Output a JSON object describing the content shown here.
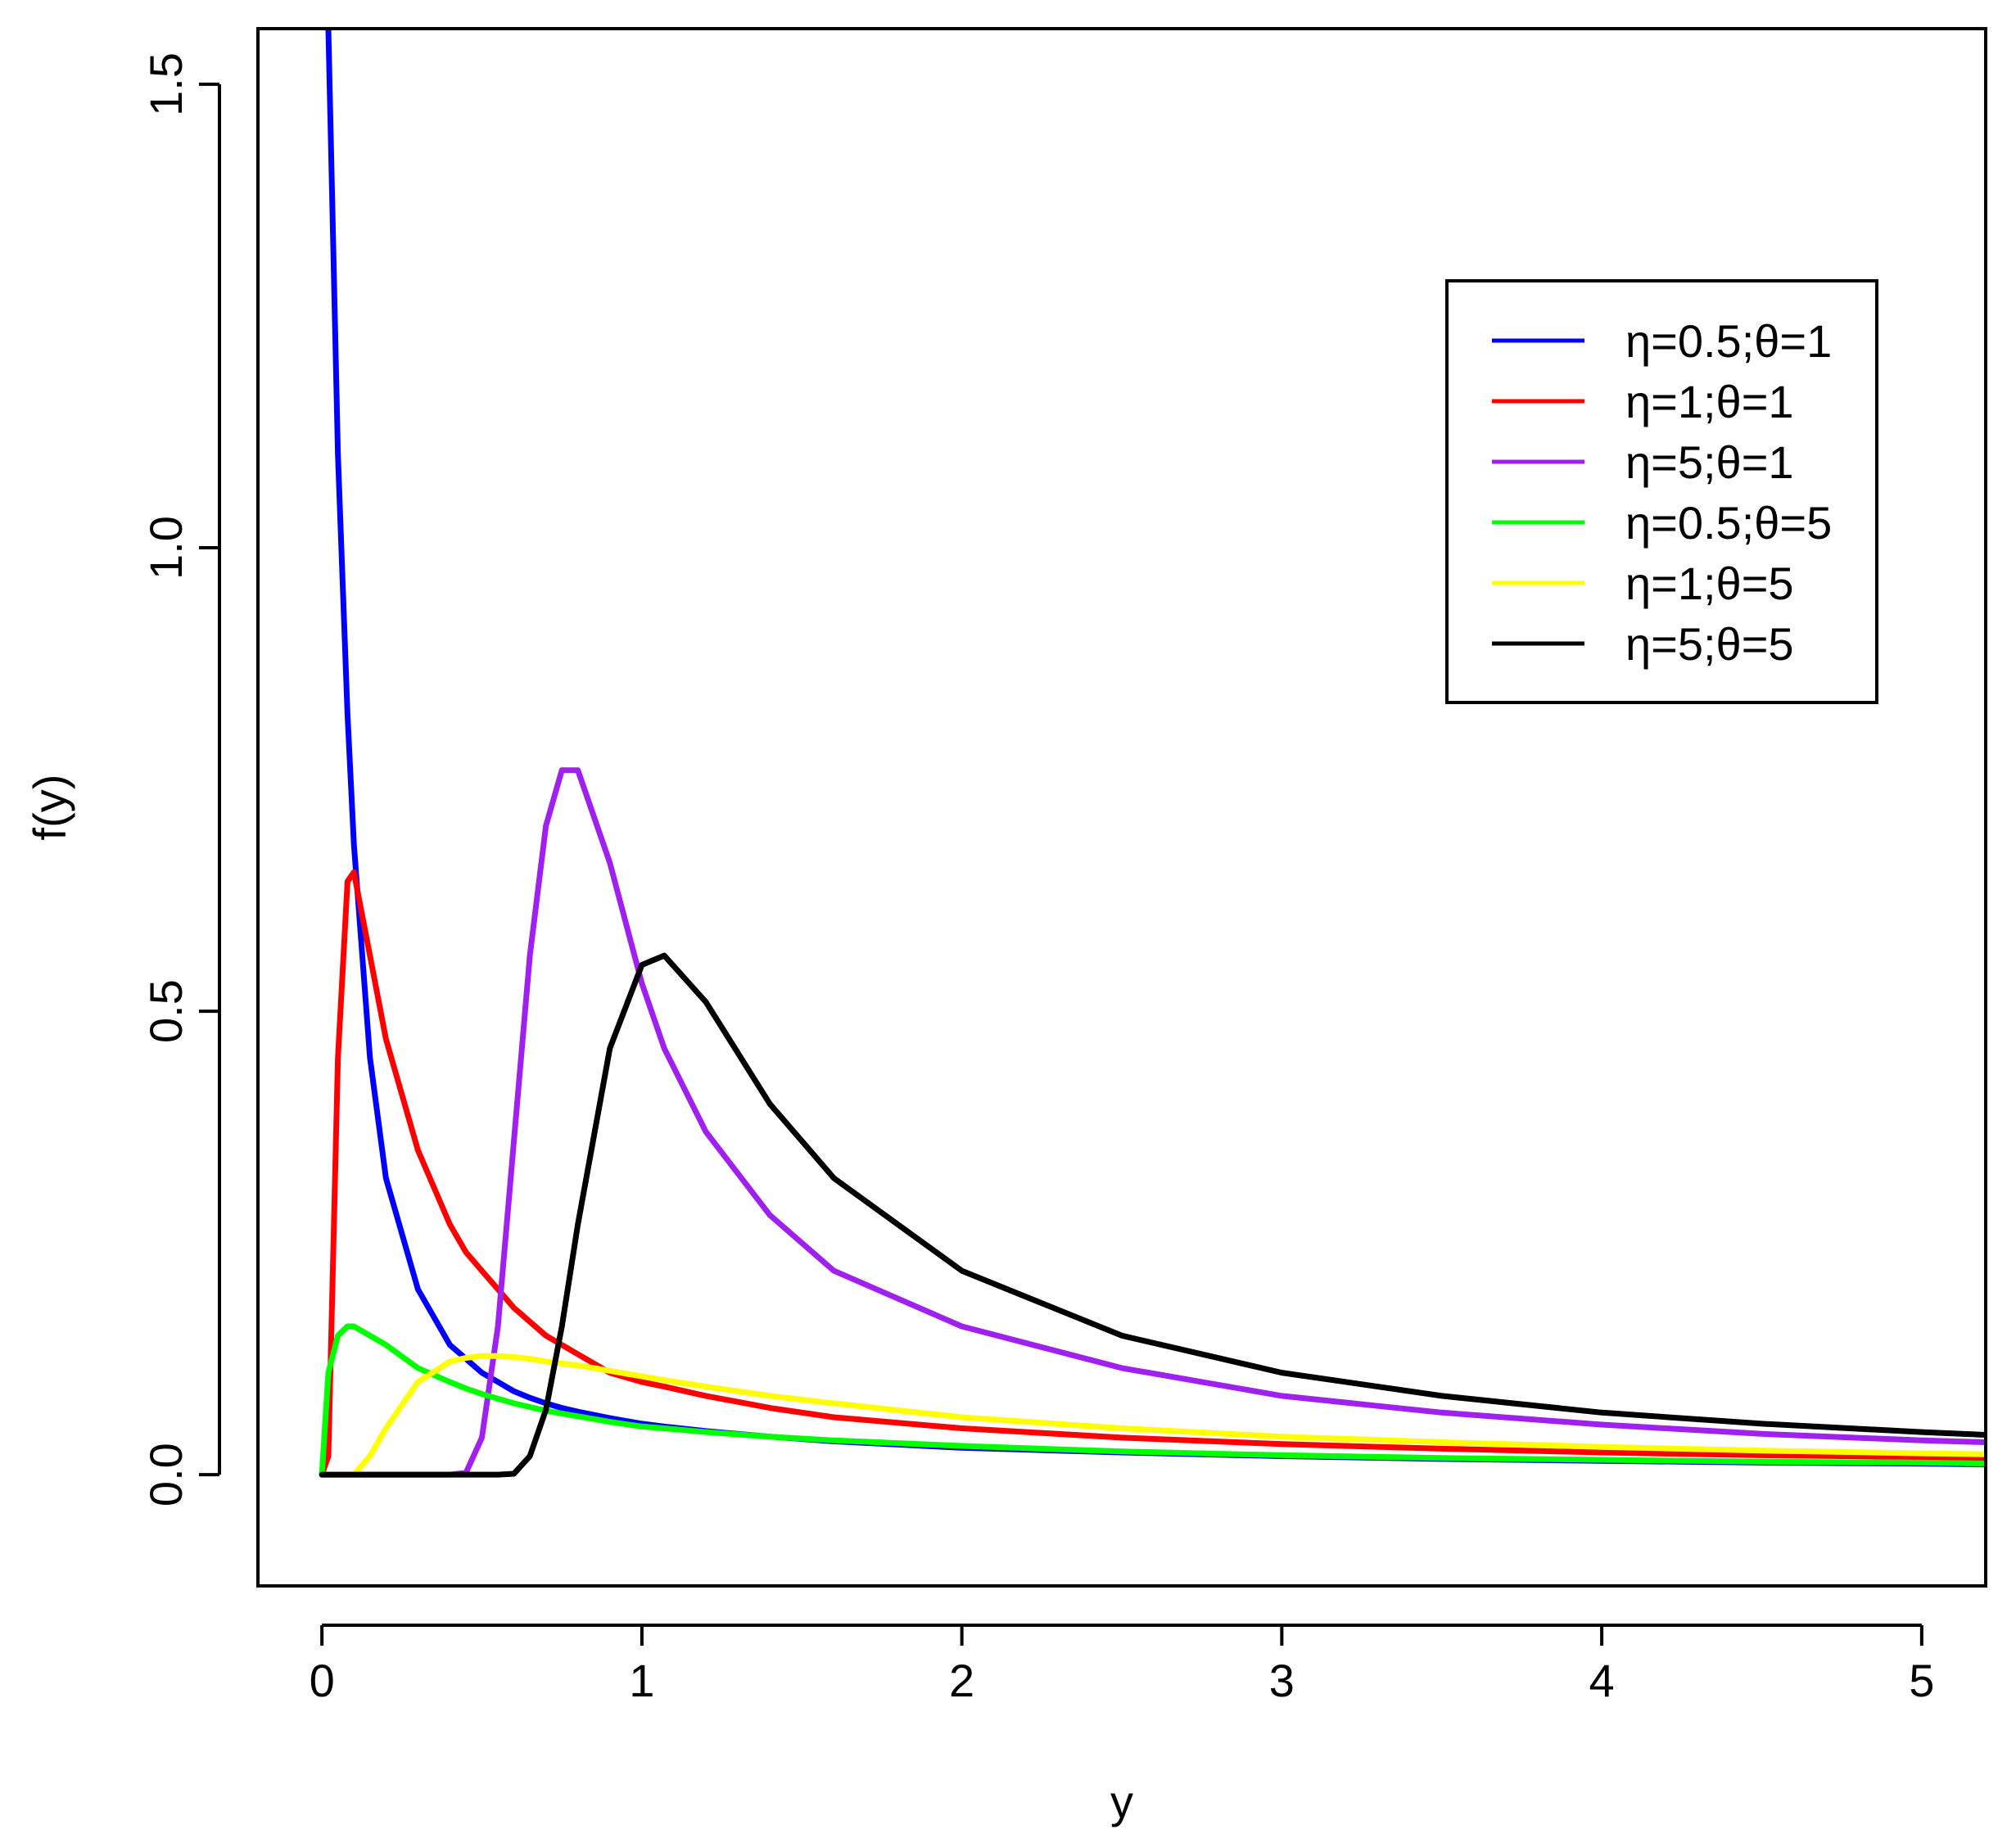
{
  "chart_data": {
    "type": "line",
    "title": "",
    "xlabel": "y",
    "ylabel": "f(y)",
    "xlim": [
      -0.2,
      5.2
    ],
    "ylim": [
      -0.12,
      1.56
    ],
    "xticks": [
      0,
      1,
      2,
      3,
      4,
      5
    ],
    "xtick_labels": [
      "0",
      "1",
      "2",
      "3",
      "4",
      "5"
    ],
    "yticks": [
      0,
      0.5,
      1,
      1.5
    ],
    "ytick_labels": [
      "0.0",
      "0.5",
      "1.0",
      "1.5"
    ],
    "grid": false,
    "legend_position": "top-right",
    "x": [
      0,
      0.02,
      0.05,
      0.08,
      0.1,
      0.15,
      0.2,
      0.3,
      0.4,
      0.45,
      0.5,
      0.55,
      0.6,
      0.65,
      0.7,
      0.75,
      0.8,
      0.9,
      1.0,
      1.07,
      1.2,
      1.4,
      1.6,
      2.0,
      2.5,
      3.0,
      3.5,
      4.0,
      4.5,
      5.0,
      5.2
    ],
    "series": [
      {
        "name": "η=0.5;θ=1",
        "color": "#0000ff",
        "values": [
          null,
          1.56,
          1.1,
          0.82,
          0.68,
          0.45,
          0.32,
          0.2,
          0.14,
          0.125,
          0.11,
          0.1,
          0.09,
          0.083,
          0.077,
          0.072,
          0.068,
          0.061,
          0.055,
          0.052,
          0.047,
          0.041,
          0.036,
          0.029,
          0.024,
          0.02,
          0.017,
          0.015,
          0.013,
          0.012,
          0.011
        ]
      },
      {
        "name": "η=1;θ=1",
        "color": "#ff0000",
        "values": [
          0,
          0.02,
          0.45,
          0.64,
          0.65,
          0.56,
          0.47,
          0.35,
          0.27,
          0.24,
          0.22,
          0.2,
          0.18,
          0.165,
          0.15,
          0.14,
          0.13,
          0.11,
          0.1,
          0.095,
          0.085,
          0.072,
          0.062,
          0.05,
          0.04,
          0.033,
          0.028,
          0.024,
          0.021,
          0.019,
          0.018
        ]
      },
      {
        "name": "η=5;θ=1",
        "color": "#a020f0",
        "values": [
          0,
          0,
          0,
          0,
          0,
          0,
          0,
          0,
          0,
          0.002,
          0.04,
          0.16,
          0.36,
          0.56,
          0.7,
          0.76,
          0.76,
          0.66,
          0.53,
          0.46,
          0.37,
          0.28,
          0.22,
          0.16,
          0.115,
          0.085,
          0.067,
          0.054,
          0.044,
          0.037,
          0.035
        ]
      },
      {
        "name": "η=0.5;θ=5",
        "color": "#00ff00",
        "values": [
          0,
          0.11,
          0.15,
          0.16,
          0.16,
          0.15,
          0.14,
          0.115,
          0.1,
          0.093,
          0.087,
          0.082,
          0.077,
          0.073,
          0.069,
          0.066,
          0.063,
          0.057,
          0.052,
          0.05,
          0.046,
          0.041,
          0.037,
          0.031,
          0.025,
          0.021,
          0.018,
          0.016,
          0.014,
          0.013,
          0.012
        ]
      },
      {
        "name": "η=1;θ=5",
        "color": "#ffff00",
        "values": [
          0,
          0,
          0,
          0,
          0,
          0.02,
          0.05,
          0.1,
          0.122,
          0.126,
          0.128,
          0.128,
          0.127,
          0.125,
          0.122,
          0.12,
          0.118,
          0.112,
          0.106,
          0.102,
          0.095,
          0.085,
          0.077,
          0.062,
          0.05,
          0.041,
          0.035,
          0.03,
          0.026,
          0.023,
          0.022
        ]
      },
      {
        "name": "η=5;θ=5",
        "color": "#000000",
        "values": [
          0,
          0,
          0,
          0,
          0,
          0,
          0,
          0,
          0,
          0,
          0,
          0,
          0.001,
          0.02,
          0.07,
          0.16,
          0.27,
          0.46,
          0.55,
          0.56,
          0.51,
          0.4,
          0.32,
          0.22,
          0.15,
          0.11,
          0.085,
          0.067,
          0.055,
          0.046,
          0.043
        ]
      }
    ]
  }
}
